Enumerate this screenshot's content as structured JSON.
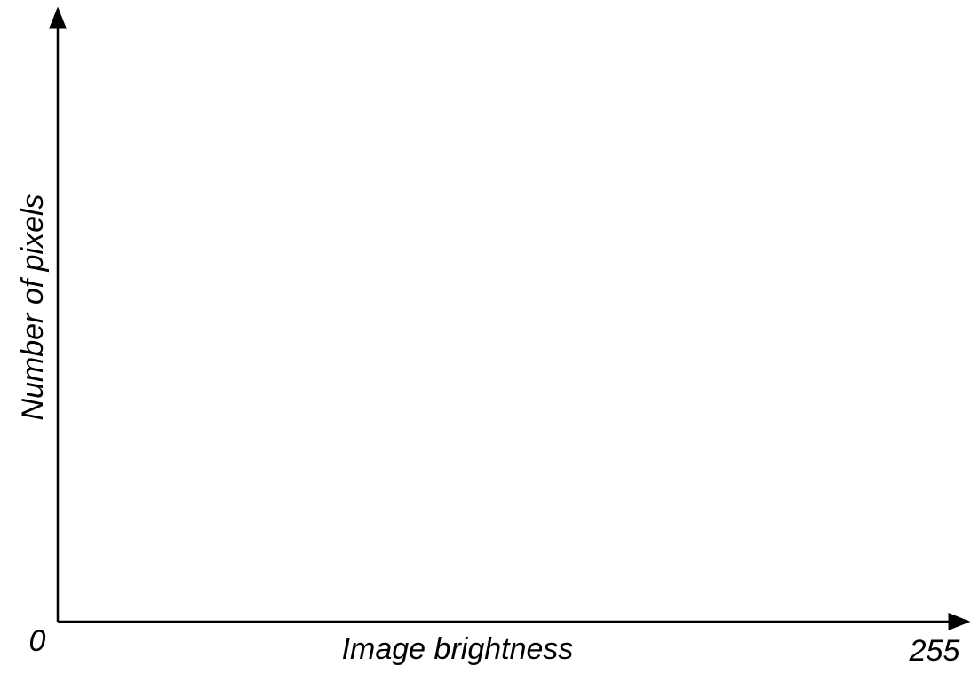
{
  "chart_data": {
    "type": "line",
    "title": "",
    "xlabel": "Image brightness",
    "ylabel": "Number of pixels",
    "x_tick_labels": [
      "0",
      "255"
    ],
    "xlim": [
      0,
      255
    ],
    "series": [],
    "grid": false,
    "colors": {
      "axis": "#000000",
      "background": "#ffffff"
    }
  }
}
